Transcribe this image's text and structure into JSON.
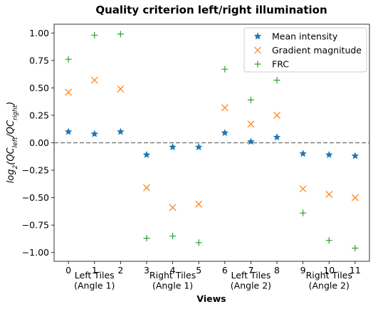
{
  "chart_data": {
    "type": "scatter",
    "title": "Quality criterion left/right illumination",
    "xlabel": "Views",
    "ylabel": {
      "base": "log",
      "base_sub": "2",
      "open": "(QC",
      "num_sub": "left",
      "mid": "/QC",
      "den_sub": "right",
      "close": ")"
    },
    "x": [
      0,
      1,
      2,
      3,
      4,
      5,
      6,
      7,
      8,
      9,
      10,
      11
    ],
    "xticks": [
      "0",
      "1",
      "2",
      "3",
      "4",
      "5",
      "6",
      "7",
      "8",
      "9",
      "10",
      "11"
    ],
    "xlim": [
      -0.55,
      11.55
    ],
    "ylim": [
      -1.08,
      1.08
    ],
    "yticks": [
      "1.00",
      "0.75",
      "0.50",
      "0.25",
      "0.00",
      "−0.25",
      "−0.50",
      "−0.75",
      "−1.00"
    ],
    "ytick_values": [
      1.0,
      0.75,
      0.5,
      0.25,
      0.0,
      -0.25,
      -0.5,
      -0.75,
      -1.0
    ],
    "reference_line": {
      "y": 0.0,
      "style": "dashed",
      "color": "#808080"
    },
    "groups": [
      {
        "line1": "Left Tiles",
        "line2": "(Angle 1)",
        "center": 1
      },
      {
        "line1": "Right Tiles",
        "line2": "(Angle 1)",
        "center": 4
      },
      {
        "line1": "Left Tiles",
        "line2": "(Angle 2)",
        "center": 7
      },
      {
        "line1": "Right Tiles",
        "line2": "(Angle 2)",
        "center": 10
      }
    ],
    "series": [
      {
        "name": "Mean intensity",
        "marker": "star",
        "color": "#1f77b4",
        "values": [
          0.1,
          0.08,
          0.1,
          -0.11,
          -0.04,
          -0.04,
          0.09,
          0.01,
          0.05,
          -0.1,
          -0.11,
          -0.12
        ]
      },
      {
        "name": "Gradient magnitude",
        "marker": "x",
        "color": "#ff7f0e",
        "values": [
          0.46,
          0.57,
          0.49,
          -0.41,
          -0.59,
          -0.56,
          0.32,
          0.17,
          0.25,
          -0.42,
          -0.47,
          -0.5
        ]
      },
      {
        "name": "FRC",
        "marker": "plus",
        "color": "#2ca02c",
        "values": [
          0.76,
          0.98,
          0.99,
          -0.87,
          -0.85,
          -0.91,
          0.67,
          0.39,
          0.57,
          -0.64,
          -0.89,
          -0.96
        ]
      }
    ],
    "grid": false,
    "legend_position": "top-right"
  }
}
